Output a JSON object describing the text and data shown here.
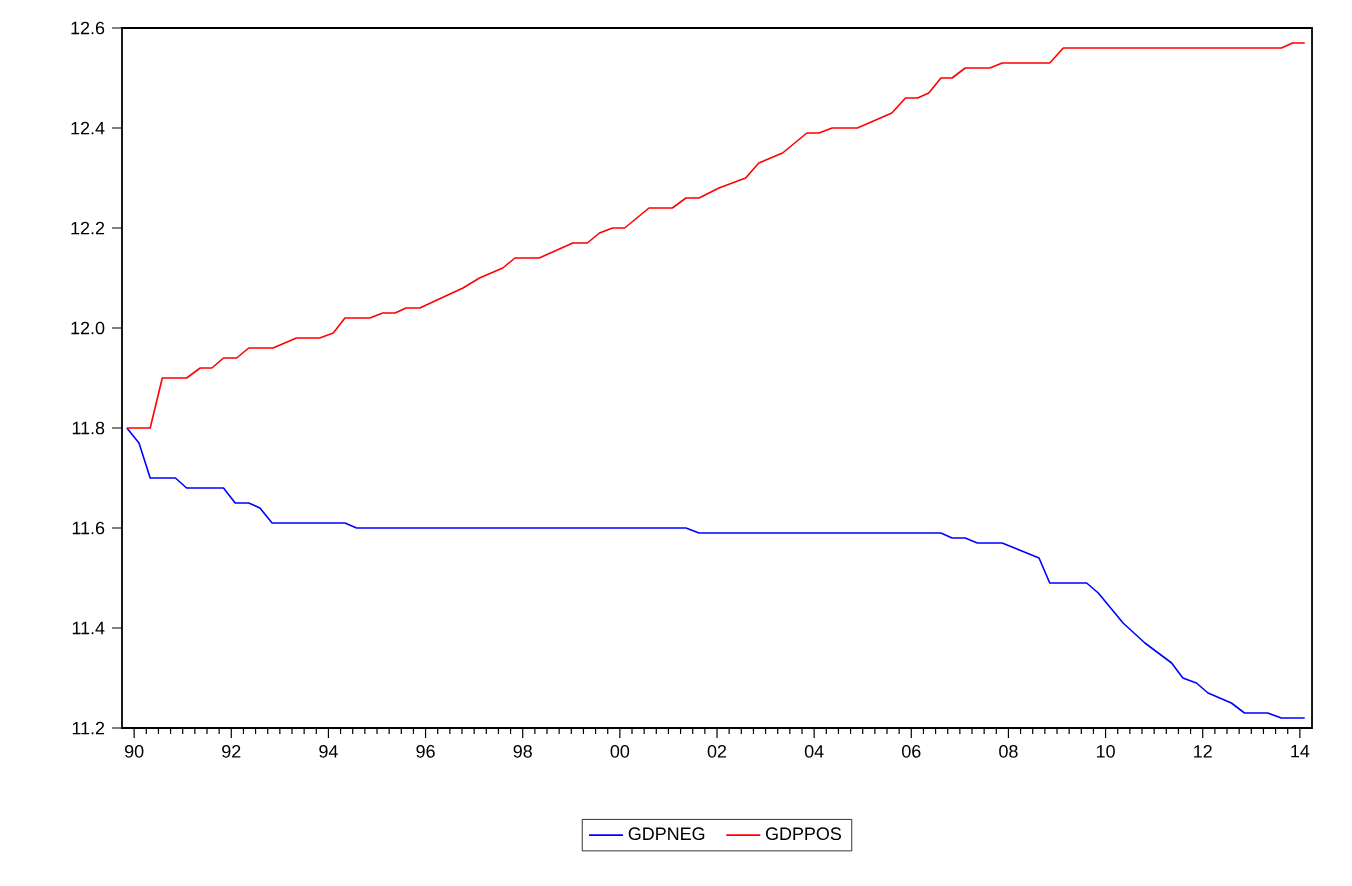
{
  "chart_data": {
    "type": "line",
    "xlim": [
      1989.75,
      2014.25
    ],
    "ylim": [
      11.2,
      12.6
    ],
    "xticks": [
      {
        "value": 1990,
        "label": "90"
      },
      {
        "value": 1992,
        "label": "92"
      },
      {
        "value": 1994,
        "label": "94"
      },
      {
        "value": 1996,
        "label": "96"
      },
      {
        "value": 1998,
        "label": "98"
      },
      {
        "value": 2000,
        "label": "00"
      },
      {
        "value": 2002,
        "label": "02"
      },
      {
        "value": 2004,
        "label": "04"
      },
      {
        "value": 2006,
        "label": "06"
      },
      {
        "value": 2008,
        "label": "08"
      },
      {
        "value": 2010,
        "label": "10"
      },
      {
        "value": 2012,
        "label": "12"
      },
      {
        "value": 2014,
        "label": "14"
      }
    ],
    "yticks": [
      11.2,
      11.4,
      11.6,
      11.8,
      {
        "value": 12.0,
        "label": "12.0"
      },
      12.2,
      12.4,
      12.6
    ],
    "grid": false,
    "legend": "bottom",
    "marker": "none",
    "line_style": "solid",
    "series": [
      {
        "name": "GDPNEG",
        "color": "#0000ff",
        "x": [
          1989.85,
          1990.1,
          1990.33,
          1990.85,
          1991.08,
          1991.84,
          1992.08,
          1992.36,
          1992.59,
          1992.84,
          1994.34,
          1994.58,
          2001.36,
          2001.63,
          2006.61,
          2006.84,
          2007.11,
          2007.36,
          2007.87,
          2008.63,
          2008.85,
          2009.61,
          2009.85,
          2010.36,
          2010.81,
          2011.36,
          2011.59,
          2011.87,
          2012.11,
          2012.59,
          2012.86,
          2013.34,
          2013.62,
          2014.1
        ],
        "values": [
          11.8,
          11.77,
          11.7,
          11.7,
          11.68,
          11.68,
          11.65,
          11.65,
          11.64,
          11.61,
          11.61,
          11.6,
          11.6,
          11.59,
          11.59,
          11.58,
          11.58,
          11.57,
          11.57,
          11.54,
          11.49,
          11.49,
          11.47,
          11.41,
          11.37,
          11.33,
          11.3,
          11.29,
          11.27,
          11.25,
          11.23,
          11.23,
          11.22,
          11.22
        ]
      },
      {
        "name": "GDPPOS",
        "color": "#ff0000",
        "x": [
          1989.85,
          1990.33,
          1990.58,
          1991.08,
          1991.36,
          1991.6,
          1991.84,
          1992.11,
          1992.36,
          1992.86,
          1993.34,
          1993.82,
          1994.1,
          1994.34,
          1994.85,
          1995.12,
          1995.37,
          1995.6,
          1995.88,
          1996.77,
          1997.11,
          1997.59,
          1997.84,
          1998.34,
          1999.03,
          1999.33,
          1999.58,
          1999.85,
          2000.1,
          2000.6,
          2001.08,
          2001.36,
          2001.63,
          2002.04,
          2002.59,
          2002.86,
          2003.35,
          2003.85,
          2004.1,
          2004.37,
          2004.89,
          2005.6,
          2005.88,
          2006.13,
          2006.36,
          2006.61,
          2006.84,
          2007.11,
          2007.62,
          2007.87,
          2008.85,
          2009.13,
          2013.62,
          2013.85,
          2014.1
        ],
        "values": [
          11.8,
          11.8,
          11.9,
          11.9,
          11.92,
          11.92,
          11.94,
          11.94,
          11.96,
          11.96,
          11.98,
          11.98,
          11.99,
          12.02,
          12.02,
          12.03,
          12.03,
          12.04,
          12.04,
          12.08,
          12.1,
          12.12,
          12.14,
          12.14,
          12.17,
          12.17,
          12.19,
          12.2,
          12.2,
          12.24,
          12.24,
          12.26,
          12.26,
          12.28,
          12.3,
          12.33,
          12.35,
          12.39,
          12.39,
          12.4,
          12.4,
          12.43,
          12.46,
          12.46,
          12.47,
          12.5,
          12.5,
          12.52,
          12.52,
          12.53,
          12.53,
          12.56,
          12.56,
          12.57,
          12.57
        ]
      }
    ]
  }
}
